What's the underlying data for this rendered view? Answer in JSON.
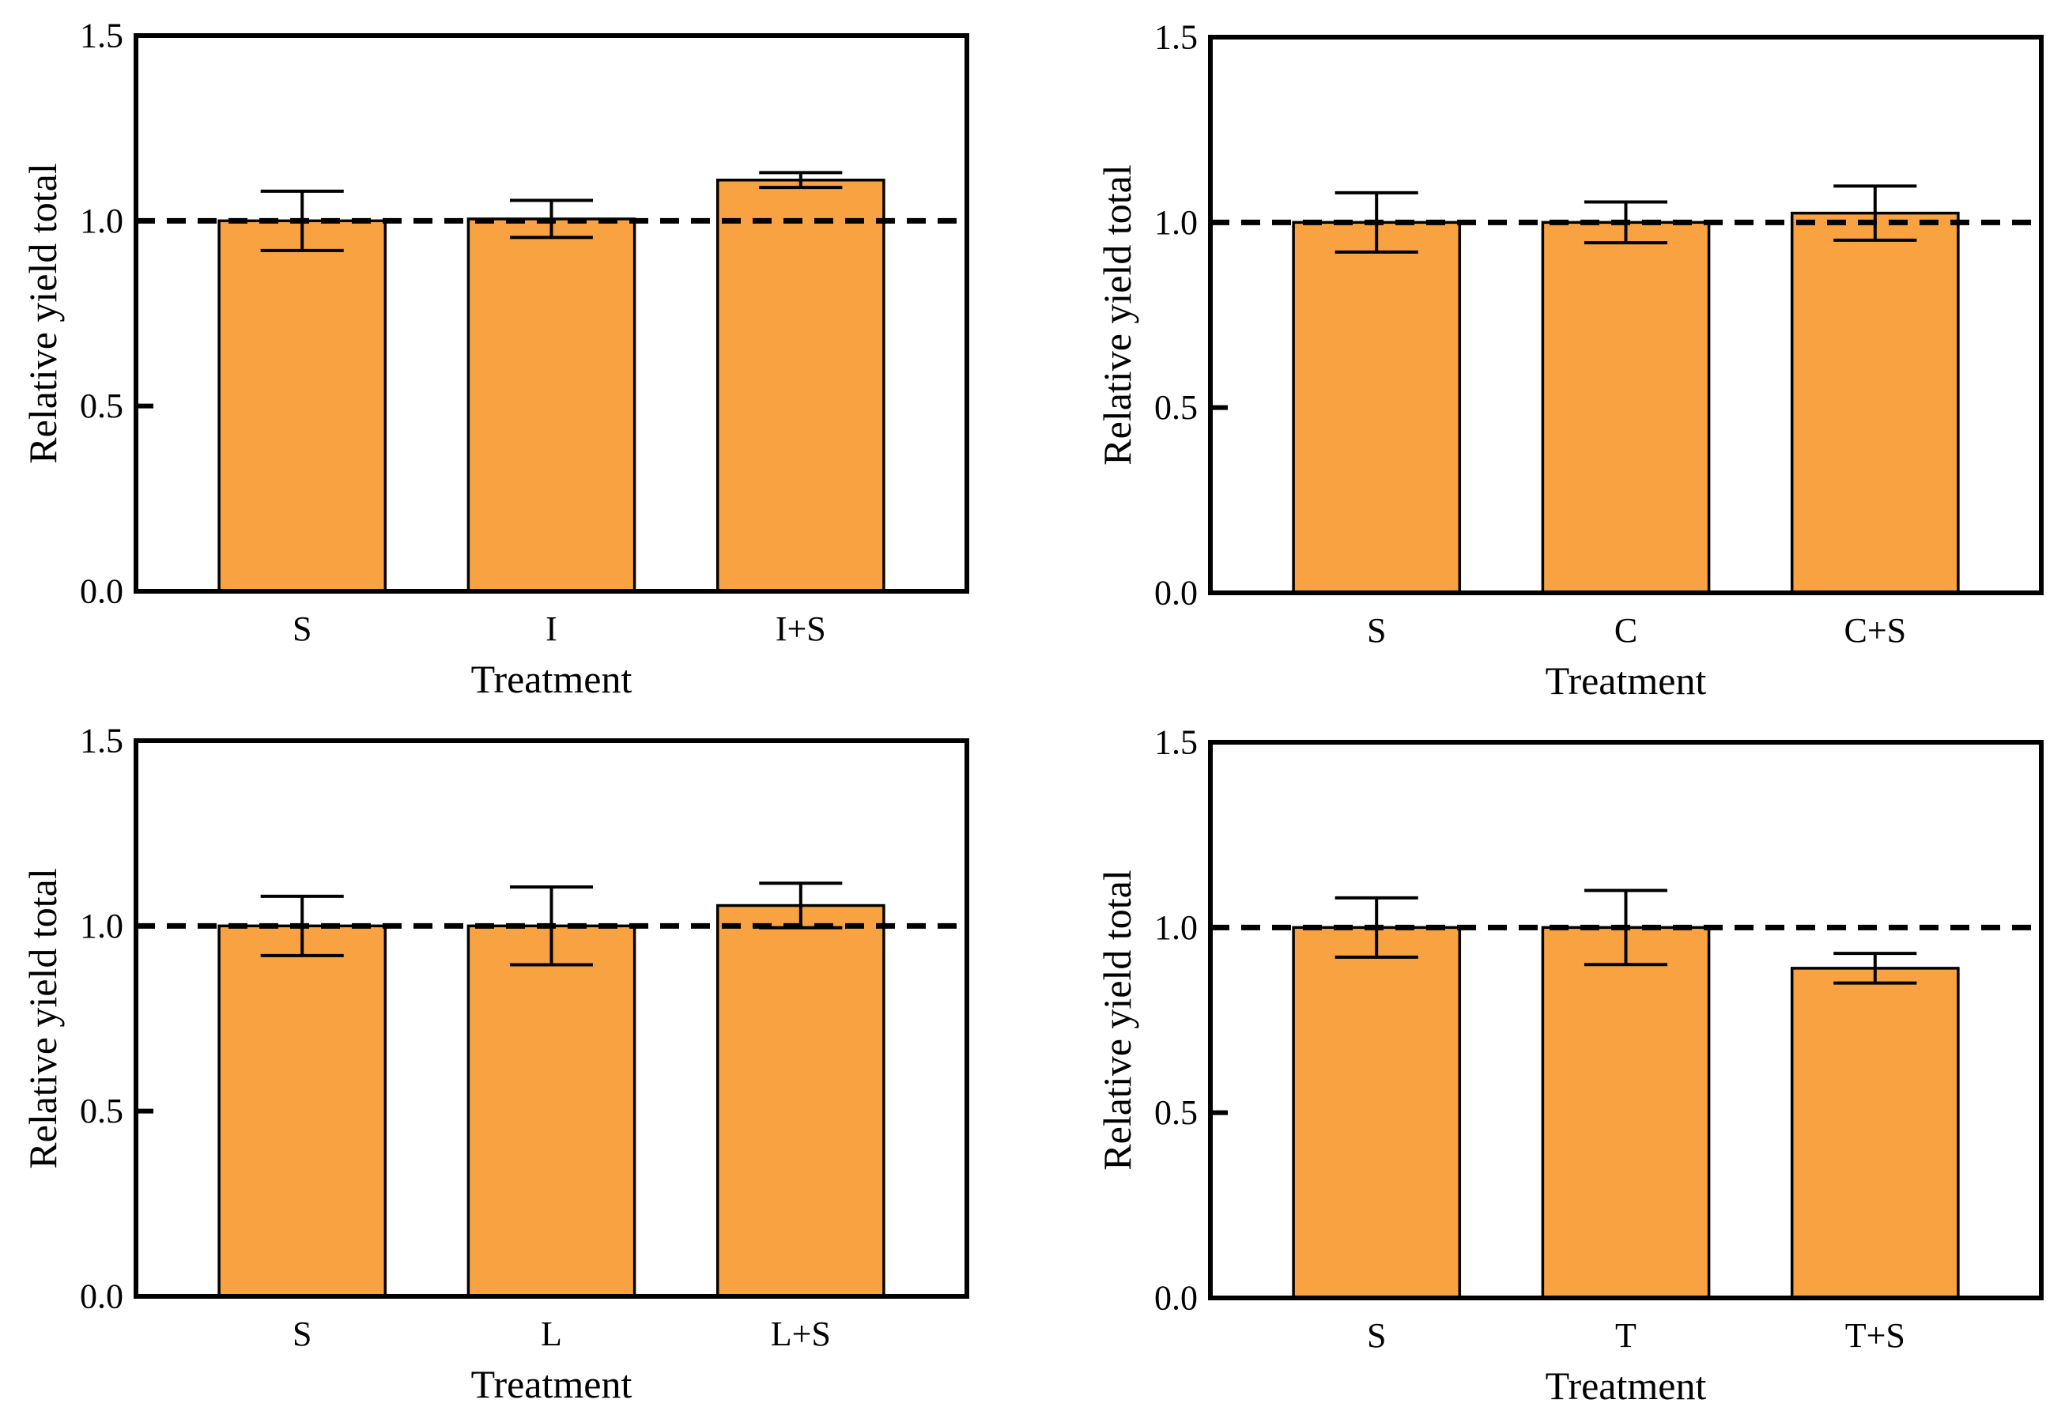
{
  "figure": {
    "background": "#ffffff",
    "bar_fill_color": "#F9A242",
    "bar_edge_color": "#000000",
    "error_bar_color": "#000000",
    "reference_line_color": "#000000",
    "axis_color": "#000000"
  },
  "chart_data": [
    {
      "type": "bar",
      "position": "top-left",
      "xlabel": "Treatment",
      "ylabel": "Relative yield total",
      "categories": [
        "S",
        "I",
        "I+S"
      ],
      "values": [
        1.0,
        1.005,
        1.11
      ],
      "errors": [
        0.08,
        0.05,
        0.02
      ],
      "ylim": [
        0,
        1.5
      ],
      "yticks": [
        0.0,
        0.5,
        1.0,
        1.5
      ],
      "ytick_labels": [
        "0.0",
        "0.5",
        "1.0",
        "1.5"
      ],
      "reference_y": 1.0,
      "grid": false,
      "legend": null
    },
    {
      "type": "bar",
      "position": "top-right",
      "xlabel": "Treatment",
      "ylabel": "Relative yield total",
      "categories": [
        "S",
        "C",
        "C+S"
      ],
      "values": [
        1.0,
        1.0,
        1.025
      ],
      "errors": [
        0.08,
        0.055,
        0.073
      ],
      "ylim": [
        0,
        1.5
      ],
      "yticks": [
        0.0,
        0.5,
        1.0,
        1.5
      ],
      "ytick_labels": [
        "0.0",
        "0.5",
        "1.0",
        "1.5"
      ],
      "reference_y": 1.0,
      "grid": false,
      "legend": null
    },
    {
      "type": "bar",
      "position": "bottom-left",
      "xlabel": "Treatment",
      "ylabel": "Relative yield total",
      "categories": [
        "S",
        "L",
        "L+S"
      ],
      "values": [
        1.0,
        1.0,
        1.055
      ],
      "errors": [
        0.08,
        0.105,
        0.06
      ],
      "ylim": [
        0,
        1.5
      ],
      "yticks": [
        0.0,
        0.5,
        1.0,
        1.5
      ],
      "ytick_labels": [
        "0.0",
        "0.5",
        "1.0",
        "1.5"
      ],
      "reference_y": 1.0,
      "grid": false,
      "legend": null
    },
    {
      "type": "bar",
      "position": "bottom-right",
      "xlabel": "Treatment",
      "ylabel": "Relative yield total",
      "categories": [
        "S",
        "T",
        "T+S"
      ],
      "values": [
        1.0,
        1.0,
        0.89
      ],
      "errors": [
        0.08,
        0.1,
        0.04
      ],
      "ylim": [
        0,
        1.5
      ],
      "yticks": [
        0.0,
        0.5,
        1.0,
        1.5
      ],
      "ytick_labels": [
        "0.0",
        "0.5",
        "1.0",
        "1.5"
      ],
      "reference_y": 1.0,
      "grid": false,
      "legend": null
    }
  ]
}
